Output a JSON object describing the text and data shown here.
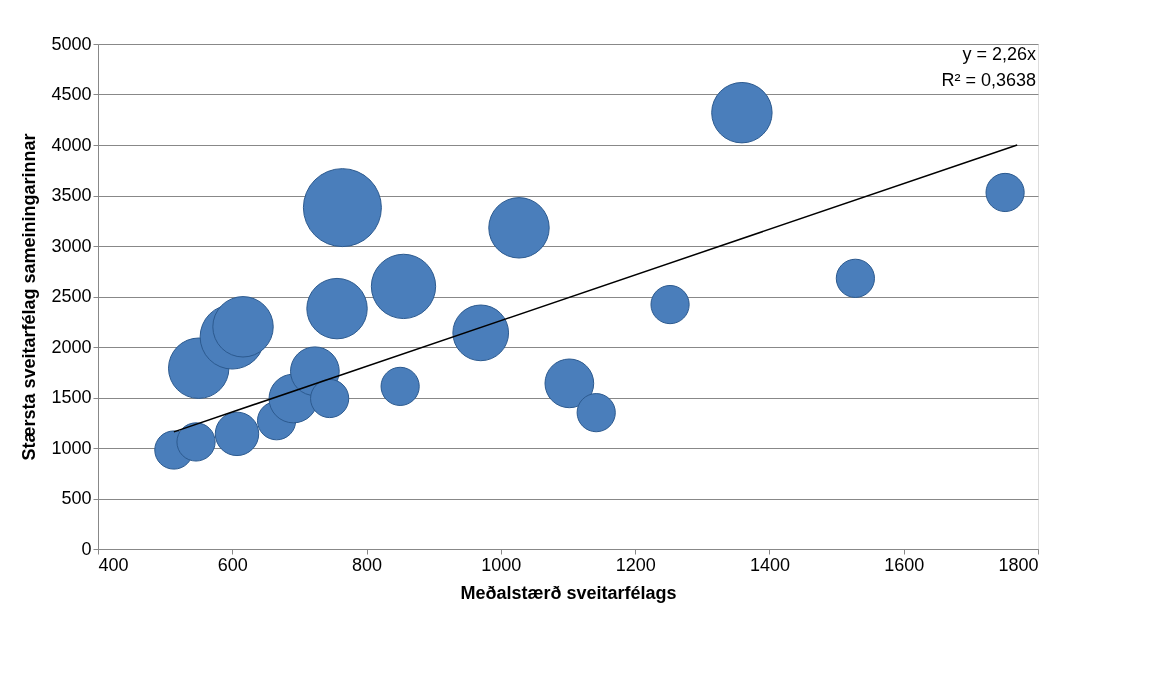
{
  "chart_data": {
    "type": "bubble",
    "xlabel": "Meðalstærð sveitarfélags",
    "ylabel": "Stærsta sveitarfélag sameiningarinnar",
    "xlim": [
      400,
      1800
    ],
    "xticks": [
      400,
      600,
      800,
      1000,
      1200,
      1400,
      1600,
      1800
    ],
    "ylim": [
      0,
      5000
    ],
    "yticks": [
      0,
      500,
      1000,
      1500,
      2000,
      2500,
      3000,
      3500,
      4000,
      4500,
      5000
    ],
    "grid": "y",
    "legend": false,
    "annotations": [
      "y = 2,26x",
      "R² = 0,3638"
    ],
    "series": [
      {
        "color": "#4a7ebb",
        "x": [
          513,
          546,
          550,
          600,
          616,
          607,
          666,
          691,
          723,
          745,
          756,
          764,
          850,
          855,
          970,
          1027,
          1102,
          1142,
          1252,
          1359,
          1528,
          1751
        ],
        "values": [
          980,
          1060,
          1790,
          2100,
          2200,
          1140,
          1270,
          1490,
          1760,
          1490,
          2380,
          3380,
          1610,
          2600,
          2140,
          3180,
          1640,
          1350,
          2420,
          4320,
          2680,
          3530
        ],
        "sizes": [
          0.24,
          0.24,
          0.6,
          0.68,
          0.6,
          0.31,
          0.24,
          0.39,
          0.39,
          0.24,
          0.6,
          1,
          0.24,
          0.68,
          0.51,
          0.6,
          0.39,
          0.24,
          0.24,
          0.6,
          0.24,
          0.24
        ]
      },
      {
        "type": "line",
        "color": "#000000",
        "x": [
          513,
          1769
        ],
        "values": [
          1160,
          4000
        ]
      }
    ]
  }
}
